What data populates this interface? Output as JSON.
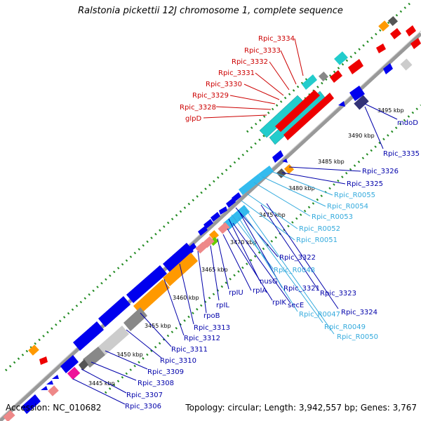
{
  "title": "Ralstonia pickettii 12J chromosome 1, complete sequence",
  "accession": "Accession: NC_010682",
  "summary": "Topology: circular; Length: 3,942,557 bp; Genes: 3,767",
  "colors": {
    "red_genes": "#ee0000",
    "cyan_genes": "#22cccc",
    "blue_genes": "#0000ee",
    "light_blue_genes": "#33bbee",
    "orange_genes": "#ff9900",
    "gray_genes": "#888888",
    "light_gray_genes": "#cccccc",
    "dark_gray_genes": "#555555",
    "pink_genes": "#ee8888",
    "magenta_genes": "#ee1199",
    "navy_genes": "#333377",
    "green_ticks": "#228b22",
    "backbone": "#888888",
    "label_red": "#cc0000",
    "label_blue": "#0000aa",
    "label_cyan": "#33aadd"
  },
  "kbp_marks": [
    "3445 kbp",
    "3450 kbp",
    "3455 kbp",
    "3460 kbp",
    "3465 kbp",
    "3470 kbp",
    "3475 kbp",
    "3480 kbp",
    "3485 kbp",
    "3490 kbp",
    "3495 kbp"
  ],
  "labels_red": [
    "Rpic_3334",
    "Rpic_3333",
    "Rpic_3332",
    "Rpic_3331",
    "Rpic_3330",
    "Rpic_3329",
    "Rpic_3328",
    "glpD"
  ],
  "labels_right": [
    {
      "text": "mdoD",
      "color": "blue"
    },
    {
      "text": "Rpic_3335",
      "color": "blue"
    },
    {
      "text": "Rpic_3326",
      "color": "blue"
    },
    {
      "text": "Rpic_3325",
      "color": "blue"
    },
    {
      "text": "Rpic_R0055",
      "color": "cyan"
    },
    {
      "text": "Rpic_R0054",
      "color": "cyan"
    },
    {
      "text": "Rpic_R0053",
      "color": "cyan"
    },
    {
      "text": "Rpic_R0052",
      "color": "cyan"
    },
    {
      "text": "Rpic_R0051",
      "color": "cyan"
    },
    {
      "text": "Rpic_3322",
      "color": "blue"
    },
    {
      "text": "Rpic_R0048",
      "color": "cyan"
    },
    {
      "text": "nusG",
      "color": "blue"
    },
    {
      "text": "Rpic_3321",
      "color": "blue"
    },
    {
      "text": "Rpic_3323",
      "color": "blue"
    },
    {
      "text": "rpIU",
      "color": "blue"
    },
    {
      "text": "rpIA",
      "color": "blue"
    },
    {
      "text": "rpIK",
      "color": "blue"
    },
    {
      "text": "secE",
      "color": "blue"
    },
    {
      "text": "rpIL",
      "color": "blue"
    },
    {
      "text": "Rpic_3324",
      "color": "blue"
    },
    {
      "text": "Rpic_R0047",
      "color": "cyan"
    },
    {
      "text": "Rpic_R0049",
      "color": "cyan"
    },
    {
      "text": "Rpic_R0050",
      "color": "cyan"
    },
    {
      "text": "rpoB",
      "color": "blue"
    },
    {
      "text": "Rpic_3313",
      "color": "blue"
    },
    {
      "text": "Rpic_3312",
      "color": "blue"
    },
    {
      "text": "Rpic_3311",
      "color": "blue"
    },
    {
      "text": "Rpic_3310",
      "color": "blue"
    },
    {
      "text": "Rpic_3309",
      "color": "blue"
    },
    {
      "text": "Rpic_3308",
      "color": "blue"
    },
    {
      "text": "Rpic_3307",
      "color": "blue"
    },
    {
      "text": "Rpic_3306",
      "color": "blue"
    }
  ]
}
